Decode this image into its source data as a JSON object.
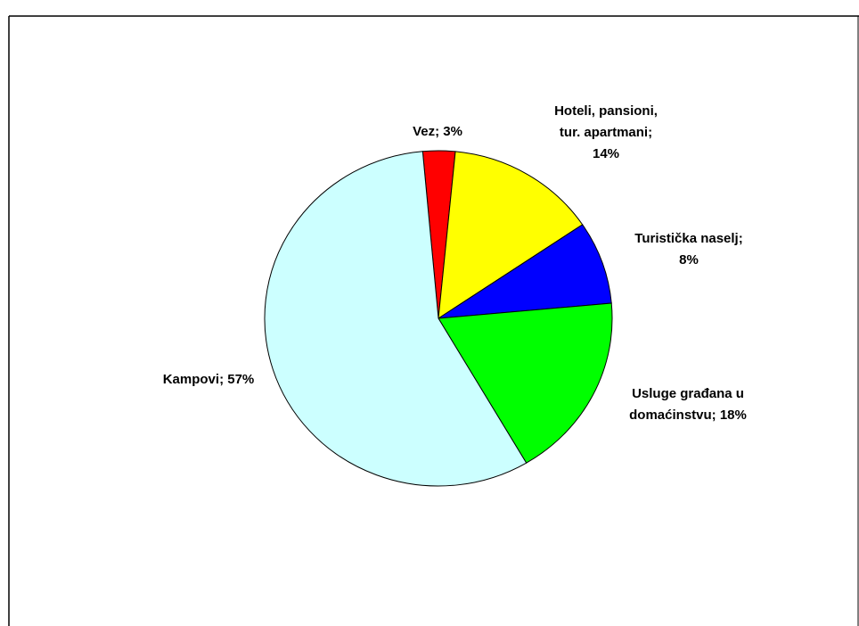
{
  "chart_data": {
    "type": "pie",
    "values": [
      3,
      14,
      8,
      18,
      57
    ],
    "labels": [
      [
        "Vez; 3%"
      ],
      [
        "Hoteli, pansioni,",
        "tur. apartmani;",
        "14%"
      ],
      [
        "Turistička naselj;",
        "8%"
      ],
      [
        "Usluge građana u",
        "domaćinstvu; 18%"
      ],
      [
        "Kampovi; 57%"
      ]
    ],
    "colors": [
      "#ff0000",
      "#ffff00",
      "#0000ff",
      "#00ff00",
      "#ccffff"
    ]
  }
}
